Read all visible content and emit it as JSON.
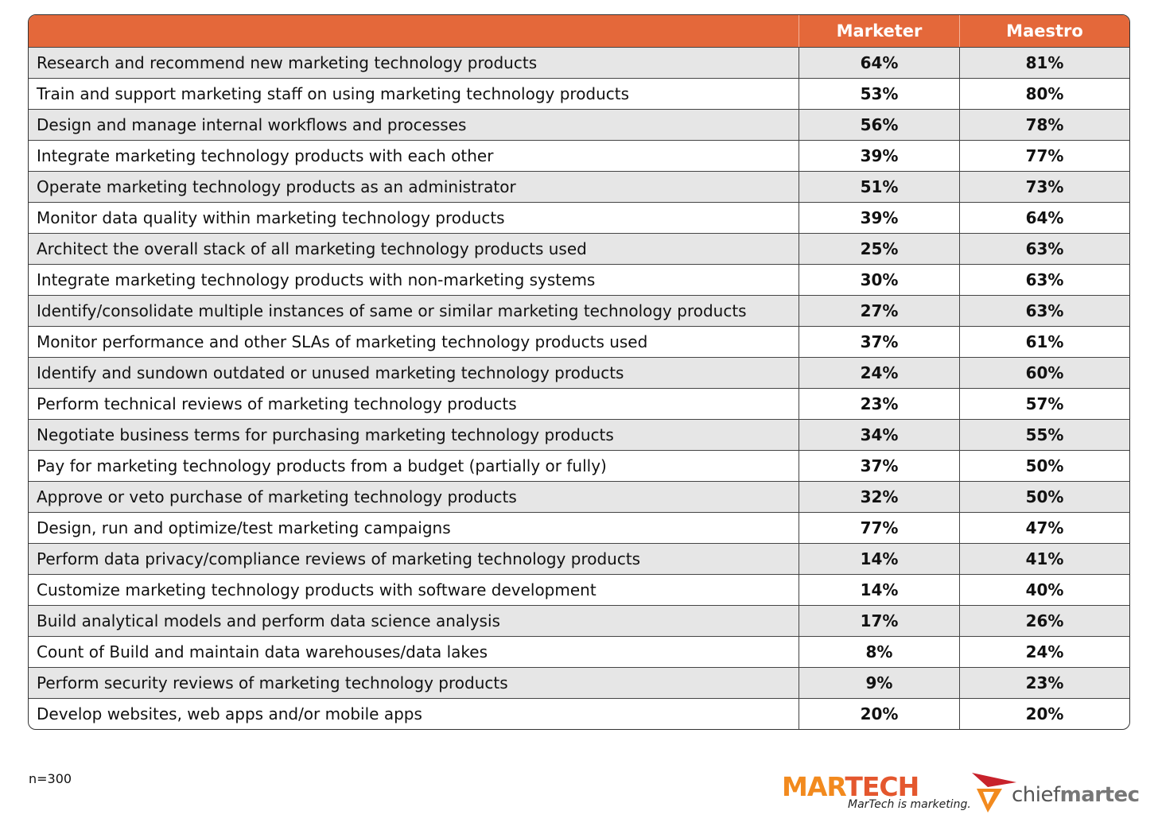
{
  "table": {
    "headers": [
      "Marketer",
      "Maestro"
    ],
    "rows": [
      [
        "Research and recommend new marketing technology products",
        "64%",
        "81%"
      ],
      [
        "Train and support marketing staff on using marketing technology products",
        "53%",
        "80%"
      ],
      [
        "Design and manage internal workflows and processes",
        "56%",
        "78%"
      ],
      [
        "Integrate marketing technology products with each other",
        "39%",
        "77%"
      ],
      [
        "Operate marketing technology products as an administrator",
        "51%",
        "73%"
      ],
      [
        "Monitor data quality within marketing technology products",
        "39%",
        "64%"
      ],
      [
        "Architect the overall stack of all marketing technology products used",
        "25%",
        "63%"
      ],
      [
        "Integrate marketing technology products with non-marketing systems",
        "30%",
        "63%"
      ],
      [
        "Identify/consolidate multiple instances of same or similar marketing technology products",
        "27%",
        "63%"
      ],
      [
        "Monitor performance and other SLAs of marketing technology products used",
        "37%",
        "61%"
      ],
      [
        "Identify and sundown outdated or unused marketing technology products",
        "24%",
        "60%"
      ],
      [
        "Perform technical reviews of marketing technology products",
        "23%",
        "57%"
      ],
      [
        "Negotiate business terms for purchasing marketing technology products",
        "34%",
        "55%"
      ],
      [
        "Pay for marketing technology products from a budget (partially or fully)",
        "37%",
        "50%"
      ],
      [
        "Approve or veto purchase of marketing technology products",
        "32%",
        "50%"
      ],
      [
        "Design, run and optimize/test marketing campaigns",
        "77%",
        "47%"
      ],
      [
        "Perform data privacy/compliance reviews of marketing technology products",
        "14%",
        "41%"
      ],
      [
        "Customize marketing technology products with software development",
        "14%",
        "40%"
      ],
      [
        "Build analytical models and perform data science analysis",
        "17%",
        "26%"
      ],
      [
        "Count of Build and maintain data warehouses/data lakes",
        "8%",
        "24%"
      ],
      [
        "Perform security reviews of marketing technology products",
        "9%",
        "23%"
      ],
      [
        "Develop websites, web apps and/or mobile apps",
        "20%",
        "20%"
      ]
    ]
  },
  "footer": {
    "note": "n=300"
  },
  "logos": {
    "martech": {
      "parts": [
        "MAR",
        "TECH"
      ],
      "tagline": "MarTech is marketing."
    },
    "chiefmartec": {
      "parts": [
        "chief",
        "martec"
      ]
    }
  }
}
